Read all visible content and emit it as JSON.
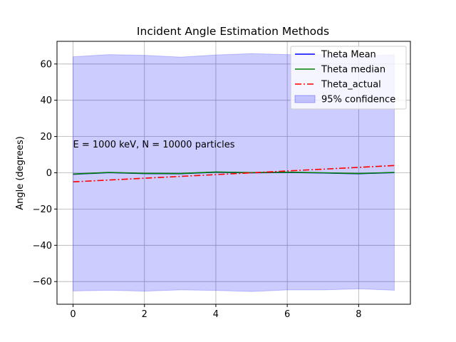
{
  "chart_data": {
    "type": "line",
    "title": "Incident Angle Estimation Methods",
    "xlabel": "",
    "ylabel": "Angle (degrees)",
    "xlim": [
      -0.45,
      9.45
    ],
    "ylim": [
      -72.5,
      72.5
    ],
    "xticks": [
      0,
      2,
      4,
      6,
      8
    ],
    "yticks": [
      -60,
      -40,
      -20,
      0,
      20,
      40,
      60
    ],
    "x": [
      0,
      1,
      2,
      3,
      4,
      5,
      6,
      7,
      8,
      9
    ],
    "series": [
      {
        "name": "Theta Mean",
        "color": "#0000ff",
        "style": "solid",
        "values": [
          -0.8,
          0.1,
          -0.4,
          -0.5,
          0.3,
          0.0,
          0.2,
          -0.1,
          -0.5,
          0.1
        ]
      },
      {
        "name": "Theta median",
        "color": "#008000",
        "style": "solid",
        "values": [
          -0.7,
          0.2,
          -0.3,
          -0.4,
          0.4,
          0.1,
          0.3,
          0.0,
          -0.4,
          0.2
        ]
      },
      {
        "name": "Theta_actual",
        "color": "#ff0000",
        "style": "dashdot",
        "values": [
          -5,
          -4,
          -3,
          -2,
          -1,
          0,
          1,
          2,
          3,
          4
        ]
      }
    ],
    "band": {
      "name": "95% confidence",
      "color": "#0000ff",
      "upper": [
        64.0,
        65.2,
        64.8,
        63.8,
        65.0,
        65.7,
        65.2,
        65.2,
        64.5,
        65.1
      ],
      "lower": [
        -65.2,
        -64.8,
        -65.3,
        -64.6,
        -64.9,
        -65.5,
        -64.6,
        -64.6,
        -64.0,
        -64.8
      ]
    },
    "annotation": "E = 1000 keV, N = 10000 particles",
    "annotation_at": [
      0,
      15.5
    ],
    "grid": true,
    "legend_position": "top-right"
  }
}
